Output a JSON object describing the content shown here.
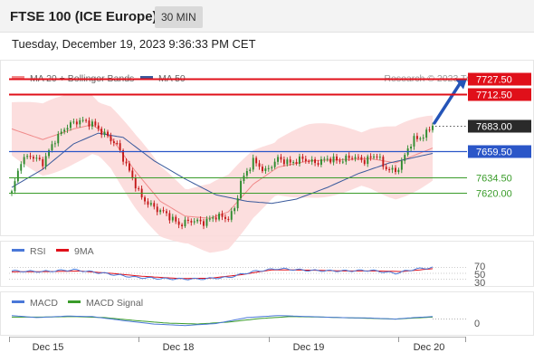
{
  "header": {
    "title": "FTSE 100 (ICE Europe)",
    "timeframe": "30 MIN",
    "datetime": "Tuesday, December 19, 2023 9:36:33 PM CET"
  },
  "colors": {
    "resistance": "#e0101a",
    "pivot": "#2b56c8",
    "support": "#3a9c2a",
    "last_price_bg": "#2a2a2a",
    "up_candle": "#2e8b2e",
    "down_candle": "#c41818",
    "bollinger_fill": "#fbd8d8",
    "ma20": "#f08a8a",
    "ma50": "#3a5a9c",
    "rsi_line": "#4a78d8",
    "rsi_ma": "#e0101a",
    "macd_line": "#4a78d8",
    "macd_signal": "#3a9c2a",
    "arrow": "#2454b8"
  },
  "chart_data": [
    {
      "type": "candlestick",
      "title": "FTSE 100 (ICE Europe) 30 MIN",
      "legend": [
        "MA 20 + Bollinger Bands",
        "MA 50"
      ],
      "credit": "Research © 2023 Trading Central",
      "x_tick_labels": [
        "Dec 15",
        "Dec 18",
        "Dec 19",
        "Dec 20"
      ],
      "ylim": [
        7580,
        7745
      ],
      "levels": [
        {
          "value": 7727.5,
          "label": "7727.50",
          "kind": "resistance"
        },
        {
          "value": 7712.5,
          "label": "7712.50",
          "kind": "resistance"
        },
        {
          "value": 7683.0,
          "label": "7683.00",
          "kind": "last"
        },
        {
          "value": 7659.5,
          "label": "7659.50",
          "kind": "pivot"
        },
        {
          "value": 7634.5,
          "label": "7634.50",
          "kind": "support"
        },
        {
          "value": 7620.0,
          "label": "7620.00",
          "kind": "support"
        }
      ],
      "anchors": [
        {
          "t": 0,
          "v": 7620
        },
        {
          "t": 3,
          "v": 7650
        },
        {
          "t": 6,
          "v": 7655
        },
        {
          "t": 10,
          "v": 7648
        },
        {
          "t": 14,
          "v": 7670
        },
        {
          "t": 18,
          "v": 7683
        },
        {
          "t": 22,
          "v": 7688
        },
        {
          "t": 26,
          "v": 7685
        },
        {
          "t": 30,
          "v": 7675
        },
        {
          "t": 34,
          "v": 7665
        },
        {
          "t": 38,
          "v": 7640
        },
        {
          "t": 42,
          "v": 7615
        },
        {
          "t": 46,
          "v": 7606
        },
        {
          "t": 50,
          "v": 7600
        },
        {
          "t": 54,
          "v": 7590
        },
        {
          "t": 58,
          "v": 7594
        },
        {
          "t": 62,
          "v": 7592
        },
        {
          "t": 66,
          "v": 7598
        },
        {
          "t": 70,
          "v": 7596
        },
        {
          "t": 72,
          "v": 7605
        },
        {
          "t": 74,
          "v": 7630
        },
        {
          "t": 78,
          "v": 7650
        },
        {
          "t": 82,
          "v": 7640
        },
        {
          "t": 86,
          "v": 7652
        },
        {
          "t": 90,
          "v": 7648
        },
        {
          "t": 94,
          "v": 7652
        },
        {
          "t": 98,
          "v": 7648
        },
        {
          "t": 102,
          "v": 7652
        },
        {
          "t": 106,
          "v": 7650
        },
        {
          "t": 110,
          "v": 7654
        },
        {
          "t": 114,
          "v": 7650
        },
        {
          "t": 118,
          "v": 7656
        },
        {
          "t": 120,
          "v": 7645
        },
        {
          "t": 122,
          "v": 7642
        },
        {
          "t": 124,
          "v": 7640
        },
        {
          "t": 126,
          "v": 7648
        },
        {
          "t": 128,
          "v": 7662
        },
        {
          "t": 130,
          "v": 7670
        },
        {
          "t": 133,
          "v": 7673
        },
        {
          "t": 136,
          "v": 7683
        }
      ],
      "ma20_anchors": [
        {
          "t": 0,
          "v": 7680
        },
        {
          "t": 10,
          "v": 7670
        },
        {
          "t": 20,
          "v": 7680
        },
        {
          "t": 26,
          "v": 7684
        },
        {
          "t": 32,
          "v": 7672
        },
        {
          "t": 40,
          "v": 7640
        },
        {
          "t": 48,
          "v": 7612
        },
        {
          "t": 56,
          "v": 7598
        },
        {
          "t": 64,
          "v": 7596
        },
        {
          "t": 70,
          "v": 7602
        },
        {
          "t": 78,
          "v": 7628
        },
        {
          "t": 86,
          "v": 7644
        },
        {
          "t": 96,
          "v": 7650
        },
        {
          "t": 106,
          "v": 7651
        },
        {
          "t": 116,
          "v": 7652
        },
        {
          "t": 124,
          "v": 7648
        },
        {
          "t": 130,
          "v": 7655
        },
        {
          "t": 136,
          "v": 7662
        }
      ],
      "bb_width": 25,
      "ma50_anchors": [
        {
          "t": 0,
          "v": 7625
        },
        {
          "t": 10,
          "v": 7642
        },
        {
          "t": 20,
          "v": 7666
        },
        {
          "t": 28,
          "v": 7676
        },
        {
          "t": 36,
          "v": 7672
        },
        {
          "t": 46,
          "v": 7650
        },
        {
          "t": 56,
          "v": 7633
        },
        {
          "t": 66,
          "v": 7618
        },
        {
          "t": 76,
          "v": 7612
        },
        {
          "t": 84,
          "v": 7610
        },
        {
          "t": 92,
          "v": 7614
        },
        {
          "t": 102,
          "v": 7625
        },
        {
          "t": 112,
          "v": 7638
        },
        {
          "t": 122,
          "v": 7648
        },
        {
          "t": 136,
          "v": 7657
        }
      ]
    },
    {
      "type": "line",
      "name": "RSI",
      "legend": [
        "RSI",
        "9MA"
      ],
      "ylim": [
        0,
        100
      ],
      "tick_labels": [
        "70",
        "50",
        "30"
      ],
      "rsi_anchors": [
        {
          "t": 0,
          "v": 58
        },
        {
          "t": 10,
          "v": 56
        },
        {
          "t": 20,
          "v": 62
        },
        {
          "t": 30,
          "v": 50
        },
        {
          "t": 40,
          "v": 36
        },
        {
          "t": 50,
          "v": 31
        },
        {
          "t": 60,
          "v": 30
        },
        {
          "t": 70,
          "v": 36
        },
        {
          "t": 78,
          "v": 56
        },
        {
          "t": 86,
          "v": 66
        },
        {
          "t": 96,
          "v": 60
        },
        {
          "t": 106,
          "v": 58
        },
        {
          "t": 116,
          "v": 60
        },
        {
          "t": 124,
          "v": 50
        },
        {
          "t": 130,
          "v": 64
        },
        {
          "t": 136,
          "v": 70
        }
      ],
      "ma9_anchors": [
        {
          "t": 0,
          "v": 55
        },
        {
          "t": 12,
          "v": 56
        },
        {
          "t": 22,
          "v": 58
        },
        {
          "t": 32,
          "v": 50
        },
        {
          "t": 42,
          "v": 40
        },
        {
          "t": 54,
          "v": 32
        },
        {
          "t": 64,
          "v": 33
        },
        {
          "t": 74,
          "v": 45
        },
        {
          "t": 84,
          "v": 62
        },
        {
          "t": 96,
          "v": 61
        },
        {
          "t": 108,
          "v": 58
        },
        {
          "t": 118,
          "v": 58
        },
        {
          "t": 126,
          "v": 56
        },
        {
          "t": 136,
          "v": 66
        }
      ]
    },
    {
      "type": "line",
      "name": "MACD",
      "legend": [
        "MACD",
        "MACD Signal"
      ],
      "zero_label": "0",
      "macd_anchors": [
        {
          "t": 0,
          "v": 6
        },
        {
          "t": 8,
          "v": 2
        },
        {
          "t": 18,
          "v": 5
        },
        {
          "t": 26,
          "v": 4
        },
        {
          "t": 36,
          "v": -4
        },
        {
          "t": 46,
          "v": -11
        },
        {
          "t": 56,
          "v": -14
        },
        {
          "t": 66,
          "v": -10
        },
        {
          "t": 76,
          "v": 2
        },
        {
          "t": 86,
          "v": 6
        },
        {
          "t": 96,
          "v": 4
        },
        {
          "t": 106,
          "v": 2
        },
        {
          "t": 116,
          "v": 1
        },
        {
          "t": 124,
          "v": -1
        },
        {
          "t": 130,
          "v": 2
        },
        {
          "t": 136,
          "v": 4
        }
      ],
      "signal_anchors": [
        {
          "t": 0,
          "v": 3
        },
        {
          "t": 10,
          "v": 3
        },
        {
          "t": 20,
          "v": 4
        },
        {
          "t": 30,
          "v": 2
        },
        {
          "t": 40,
          "v": -4
        },
        {
          "t": 50,
          "v": -9
        },
        {
          "t": 60,
          "v": -11
        },
        {
          "t": 70,
          "v": -7
        },
        {
          "t": 80,
          "v": 0
        },
        {
          "t": 90,
          "v": 4
        },
        {
          "t": 100,
          "v": 3
        },
        {
          "t": 112,
          "v": 1
        },
        {
          "t": 124,
          "v": -1
        },
        {
          "t": 136,
          "v": 3
        }
      ]
    }
  ]
}
